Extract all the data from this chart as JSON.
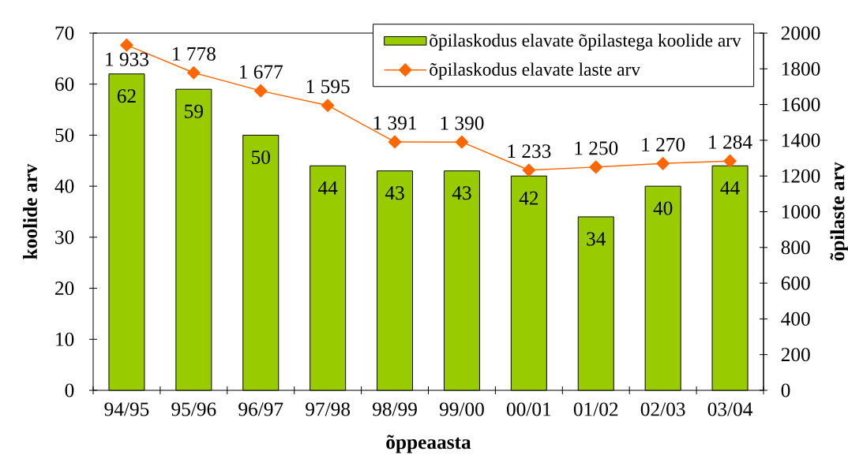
{
  "chart_data": {
    "type": "bar",
    "xlabel": "õppeaasta",
    "ylabel": "koolide arv",
    "y2label": "õpilaste arv",
    "categories": [
      "94/95",
      "95/96",
      "96/97",
      "97/98",
      "98/99",
      "99/00",
      "00/01",
      "01/02",
      "02/03",
      "03/04"
    ],
    "series": [
      {
        "name": "õpilaskodus elavate õpilastega koolide arv",
        "color": "#99cc00",
        "values": [
          62,
          59,
          50,
          44,
          43,
          43,
          42,
          34,
          40,
          44
        ],
        "value_labels": [
          "62",
          "59",
          "50",
          "44",
          "43",
          "43",
          "42",
          "34",
          "40",
          "44"
        ]
      },
      {
        "name": "õpilaskodus elavate laste arv",
        "type": "line",
        "axis": "y2",
        "color": "#ff6600",
        "values": [
          1933,
          1778,
          1677,
          1595,
          1391,
          1390,
          1233,
          1250,
          1270,
          1284
        ],
        "value_labels": [
          "1 933",
          "1 778",
          "1 677",
          "1 595",
          "1 391",
          "1 390",
          "1 233",
          "1 250",
          "1 270",
          "1 284"
        ]
      }
    ],
    "ylim": [
      0,
      70
    ],
    "yticks": [
      0,
      10,
      20,
      30,
      40,
      50,
      60,
      70
    ],
    "y2lim": [
      0,
      2000
    ],
    "y2ticks": [
      0,
      200,
      400,
      600,
      800,
      1000,
      1200,
      1400,
      1600,
      1800,
      2000
    ],
    "legend": "top right",
    "marker": "diamond",
    "line_style": "solid"
  }
}
